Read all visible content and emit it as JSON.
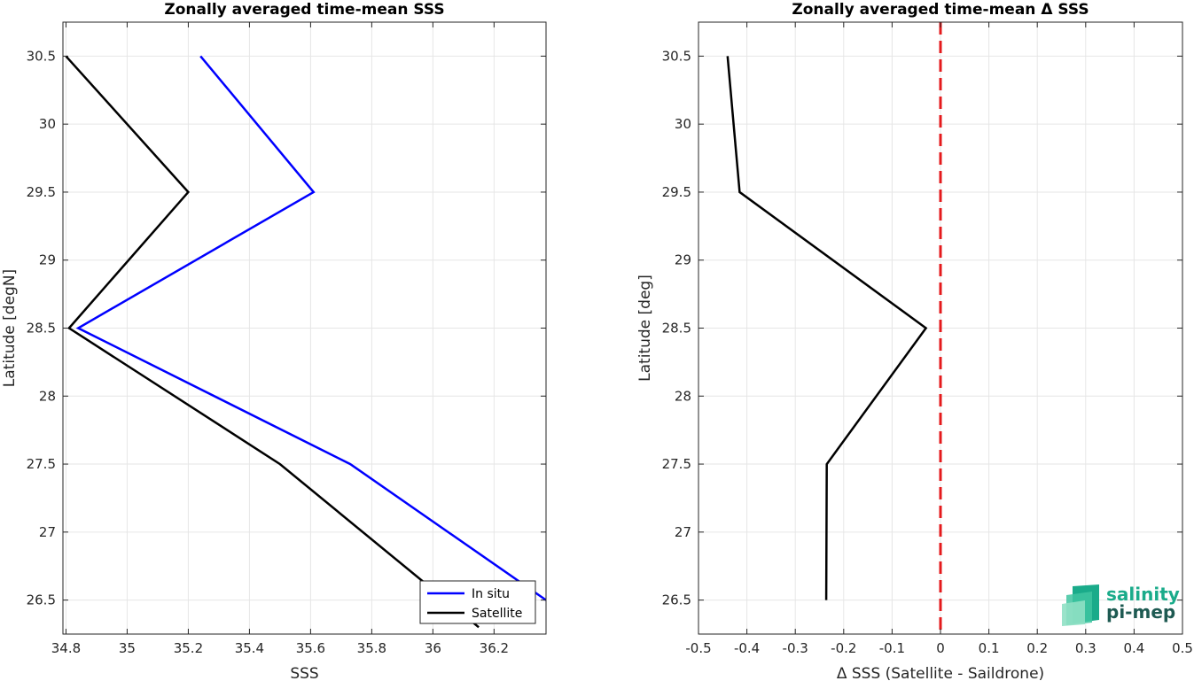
{
  "chart_data": [
    {
      "type": "line",
      "title": "Zonally averaged time-mean SSS",
      "xlabel": "SSS",
      "ylabel": "Latitude [degN]",
      "xlim": [
        34.79,
        36.37
      ],
      "ylim": [
        26.25,
        30.75
      ],
      "xticks": [
        34.8,
        35,
        35.2,
        35.4,
        35.6,
        35.8,
        36,
        36.2
      ],
      "yticks": [
        26.5,
        27,
        27.5,
        28,
        28.5,
        29,
        29.5,
        30,
        30.5
      ],
      "xtick_labels": [
        "34.8",
        "35",
        "35.2",
        "35.4",
        "35.6",
        "35.8",
        "36",
        "36.2"
      ],
      "ytick_labels": [
        "26.5",
        "27",
        "27.5",
        "28",
        "28.5",
        "29",
        "29.5",
        "30",
        "30.5"
      ],
      "grid": true,
      "legend_position": "bottom-right",
      "series": [
        {
          "name": "In situ",
          "color": "#0000ff",
          "x": [
            35.24,
            35.61,
            34.84,
            35.73,
            36.37
          ],
          "y": [
            30.5,
            29.5,
            28.5,
            27.5,
            26.5
          ]
        },
        {
          "name": "Satellite",
          "color": "#000000",
          "x": [
            34.8,
            35.2,
            34.81,
            35.5,
            36.15
          ],
          "y": [
            30.5,
            29.5,
            28.5,
            27.5,
            26.3
          ]
        }
      ]
    },
    {
      "type": "line",
      "title": "Zonally averaged time-mean Δ SSS",
      "xlabel": "Δ SSS (Satellite - Saildrone)",
      "ylabel": "Latitude [deg]",
      "xlim": [
        -0.5,
        0.5
      ],
      "ylim": [
        26.25,
        30.75
      ],
      "xticks": [
        -0.5,
        -0.4,
        -0.3,
        -0.2,
        -0.1,
        0,
        0.1,
        0.2,
        0.3,
        0.4,
        0.5
      ],
      "yticks": [
        26.5,
        27,
        27.5,
        28,
        28.5,
        29,
        29.5,
        30,
        30.5
      ],
      "xtick_labels": [
        "-0.5",
        "-0.4",
        "-0.3",
        "-0.2",
        "-0.1",
        "0",
        "0.1",
        "0.2",
        "0.3",
        "0.4",
        "0.5"
      ],
      "ytick_labels": [
        "26.5",
        "27",
        "27.5",
        "28",
        "28.5",
        "29",
        "29.5",
        "30",
        "30.5"
      ],
      "grid": true,
      "series": [
        {
          "color": "#000000",
          "x": [
            -0.44,
            -0.415,
            -0.03,
            -0.235,
            -0.236
          ],
          "y": [
            30.5,
            29.5,
            28.5,
            27.5,
            26.5
          ]
        }
      ],
      "reference_line": {
        "x": 0,
        "color": "#e41a1c",
        "style": "dashed"
      }
    }
  ],
  "logo": {
    "line1": "salinity",
    "line2": "pi-mep",
    "color": "#1aab8a",
    "dark_color": "#1e5a52"
  }
}
